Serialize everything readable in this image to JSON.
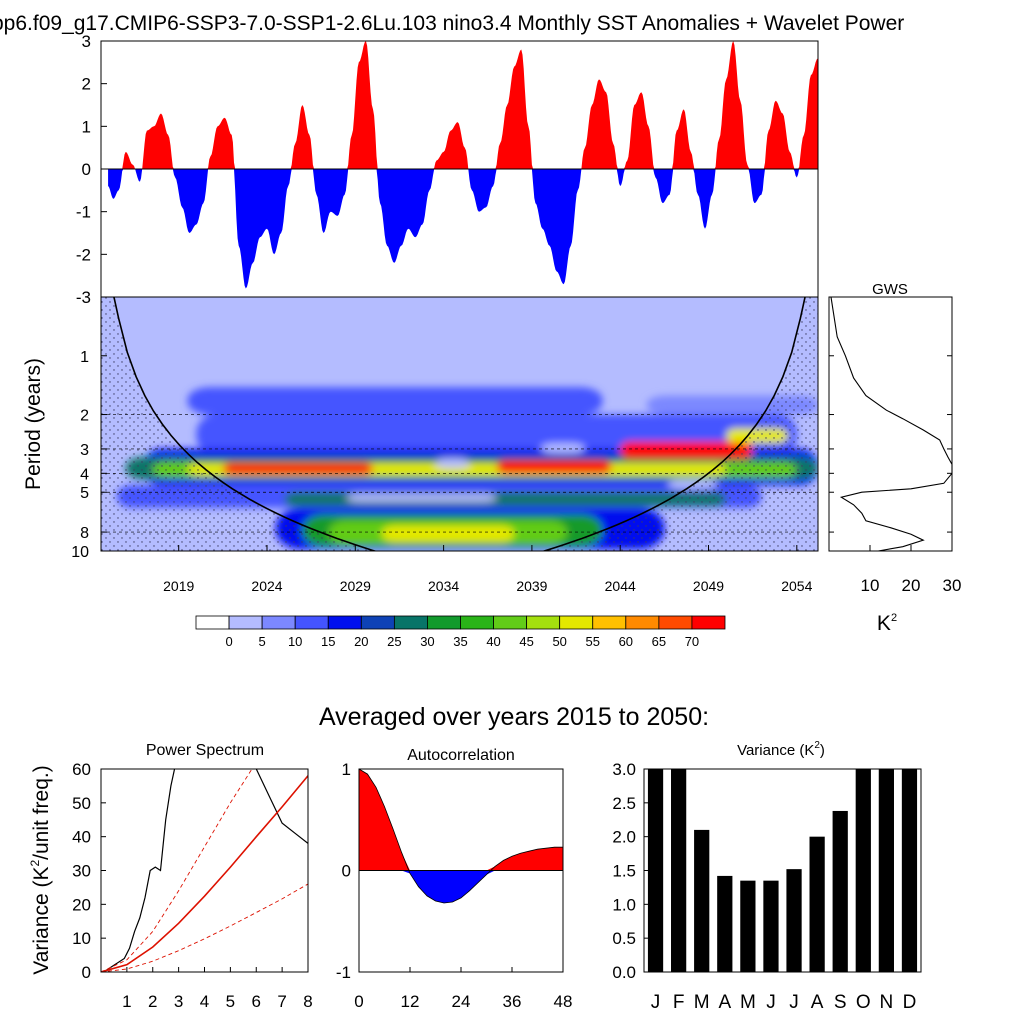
{
  "title": "pp6.f09_g17.CMIP6-SSP3-7.0-SSP1-2.6Lu.103 nino3.4 Monthly SST Anomalies + Wavelet Power",
  "colors": {
    "positive": "#ff0000",
    "negative": "#0000ff",
    "line": "#000000",
    "red_line": "#dd1100"
  },
  "chart_data": [
    {
      "id": "anomaly",
      "type": "area",
      "xlim": [
        2014.6,
        2055.2
      ],
      "ylim": [
        -3,
        3
      ],
      "yticks": [
        "3",
        "2",
        "1",
        "0",
        "-1",
        "-2",
        "-3"
      ],
      "note_values": "monthly SST anomaly (K), red above zero, blue below",
      "x": [
        2015.0,
        2015.3,
        2015.6,
        2016.0,
        2016.4,
        2016.8,
        2017.2,
        2017.6,
        2018.0,
        2018.4,
        2018.8,
        2019.2,
        2019.6,
        2020.0,
        2020.4,
        2020.8,
        2021.2,
        2021.6,
        2022.0,
        2022.4,
        2022.8,
        2023.2,
        2023.6,
        2024.0,
        2024.4,
        2024.8,
        2025.2,
        2025.6,
        2026.0,
        2026.4,
        2026.8,
        2027.2,
        2027.6,
        2028.0,
        2028.4,
        2028.8,
        2029.2,
        2029.6,
        2030.0,
        2030.4,
        2030.8,
        2031.2,
        2031.6,
        2032.0,
        2032.4,
        2032.8,
        2033.2,
        2033.6,
        2034.0,
        2034.4,
        2034.8,
        2035.2,
        2035.6,
        2036.0,
        2036.4,
        2036.8,
        2037.2,
        2037.6,
        2038.0,
        2038.4,
        2038.8,
        2039.2,
        2039.6,
        2040.0,
        2040.4,
        2040.8,
        2041.2,
        2041.6,
        2042.0,
        2042.4,
        2042.8,
        2043.2,
        2043.6,
        2044.0,
        2044.4,
        2044.8,
        2045.2,
        2045.6,
        2046.0,
        2046.4,
        2046.8,
        2047.2,
        2047.6,
        2048.0,
        2048.4,
        2048.8,
        2049.2,
        2049.6,
        2050.0,
        2050.4,
        2050.8,
        2051.2,
        2051.6,
        2052.0,
        2052.4,
        2052.8,
        2053.2,
        2053.6,
        2054.0,
        2054.4,
        2054.8,
        2055.2
      ],
      "values": [
        -0.4,
        -0.7,
        -0.5,
        0.4,
        0.1,
        -0.3,
        0.9,
        1.0,
        1.3,
        0.8,
        -0.2,
        -0.9,
        -1.5,
        -1.3,
        -0.8,
        0.3,
        1.0,
        1.2,
        0.8,
        -1.8,
        -2.8,
        -2.2,
        -1.6,
        -1.4,
        -2.0,
        -1.5,
        -0.4,
        0.6,
        1.5,
        0.8,
        -0.6,
        -1.5,
        -1.0,
        -1.1,
        -0.6,
        0.8,
        2.5,
        3.0,
        1.4,
        -0.8,
        -1.8,
        -2.2,
        -1.8,
        -1.4,
        -1.6,
        -1.3,
        -0.5,
        0.2,
        0.4,
        0.9,
        1.1,
        0.5,
        -0.5,
        -1.0,
        -0.9,
        -0.4,
        0.6,
        1.5,
        2.4,
        2.8,
        1.0,
        -0.8,
        -1.4,
        -1.8,
        -2.4,
        -2.7,
        -1.8,
        -0.5,
        0.5,
        1.5,
        2.1,
        1.8,
        0.6,
        -0.4,
        0.2,
        1.5,
        1.8,
        1.0,
        -0.2,
        -0.8,
        -0.6,
        0.9,
        1.4,
        0.4,
        -0.6,
        -1.4,
        -0.6,
        0.7,
        2.1,
        3.0,
        1.6,
        0.1,
        -0.8,
        -0.6,
        0.9,
        1.6,
        1.3,
        0.4,
        -0.2,
        0.8,
        2.2,
        2.6
      ]
    },
    {
      "id": "wavelet",
      "type": "heatmap",
      "xlabel": "",
      "ylabel": "Period (years)",
      "xticks": [
        "2019",
        "2024",
        "2029",
        "2034",
        "2039",
        "2044",
        "2049",
        "2054"
      ],
      "yticks": [
        "1",
        "2",
        "3",
        "4",
        "5",
        "8",
        "10"
      ],
      "xlim": [
        2014.6,
        2055.2
      ],
      "ylim_period": [
        0.5,
        10
      ],
      "cone_of_influence": true,
      "dashed_periods": [
        2,
        3,
        4,
        5,
        8
      ]
    },
    {
      "id": "colorbar",
      "type": "table",
      "labels": [
        "0",
        "5",
        "10",
        "15",
        "20",
        "25",
        "30",
        "35",
        "40",
        "45",
        "50",
        "55",
        "60",
        "65",
        "70"
      ],
      "colors": [
        "#ffffff",
        "#b4bcff",
        "#7c88ff",
        "#4454ff",
        "#0010ee",
        "#0e42b6",
        "#087468",
        "#129a2c",
        "#2ab418",
        "#62cc18",
        "#a4e00e",
        "#e4e800",
        "#ffc000",
        "#ff8a00",
        "#ff4a00",
        "#ff0000"
      ]
    },
    {
      "id": "gws",
      "type": "line",
      "title": "GWS",
      "xlabel": "K",
      "xlabel_sup": "2",
      "xticks": [
        "10",
        "20",
        "30"
      ],
      "xlim": [
        0,
        30
      ],
      "period": [
        0.5,
        0.8,
        1.0,
        1.3,
        1.6,
        1.9,
        2.1,
        2.4,
        2.7,
        3.0,
        3.3,
        3.6,
        4.0,
        4.5,
        4.8,
        5.0,
        5.3,
        5.8,
        6.4,
        7.0,
        7.6,
        8.2,
        8.8,
        9.5,
        10.0
      ],
      "power": [
        0.5,
        2,
        4,
        6,
        9,
        14,
        18,
        23,
        27,
        28,
        29,
        30,
        30,
        28,
        20,
        8,
        3,
        6,
        8,
        9,
        15,
        20,
        23,
        18,
        12
      ]
    },
    {
      "id": "summary_title",
      "type": "table",
      "text": "Averaged over years 2015 to 2050:"
    },
    {
      "id": "power_spectrum",
      "type": "line",
      "title": "Power Spectrum",
      "ylabel": "Variance (K",
      "ylabel_sup": "2",
      "ylabel_end": "/unit freq.)",
      "xticks": [
        "1",
        "2",
        "3",
        "4",
        "5",
        "6",
        "7",
        "8"
      ],
      "yticks": [
        "60",
        "50",
        "40",
        "30",
        "20",
        "10",
        "0"
      ],
      "xlim": [
        0,
        8
      ],
      "ylim": [
        0,
        60
      ],
      "series": [
        {
          "x": [
            0.1,
            0.5,
            0.9,
            1.1,
            1.3,
            1.5,
            1.7,
            1.9,
            2.1,
            2.3,
            2.5,
            2.7,
            2.9,
            3.0
          ],
          "y": [
            0,
            2,
            4,
            7,
            12,
            16,
            22,
            30,
            31,
            30,
            45,
            55,
            62,
            66
          ]
        },
        {
          "x": [
            6.0,
            6.5,
            7.0,
            7.5,
            8.0
          ],
          "y": [
            60,
            52,
            44,
            41,
            38
          ]
        },
        {
          "x": [
            0,
            1,
            2,
            3,
            4,
            5,
            6,
            7,
            8
          ],
          "y": [
            0,
            2.2,
            7.4,
            14.4,
            22.4,
            31,
            40,
            48.8,
            58
          ]
        },
        {
          "x": [
            0,
            1,
            2,
            3,
            4,
            5,
            6,
            6.3
          ],
          "y": [
            0,
            3.6,
            12,
            24,
            37,
            50,
            62,
            66
          ]
        },
        {
          "x": [
            0,
            1,
            2,
            3,
            4,
            5,
            6,
            7,
            8
          ],
          "y": [
            0,
            0.9,
            3.2,
            6.3,
            9.8,
            13.6,
            17.6,
            21.6,
            26
          ]
        }
      ]
    },
    {
      "id": "autocorrelation",
      "type": "area",
      "title": "Autocorrelation",
      "xticks": [
        "0",
        "12",
        "24",
        "36",
        "48"
      ],
      "yticks": [
        "1",
        "0",
        "-1"
      ],
      "xlim": [
        0,
        48
      ],
      "ylim": [
        -1,
        1
      ],
      "x": [
        0,
        2,
        4,
        6,
        8,
        10,
        12,
        14,
        16,
        18,
        20,
        22,
        24,
        26,
        28,
        30,
        32,
        34,
        36,
        38,
        40,
        42,
        44,
        46,
        48
      ],
      "values": [
        1.0,
        0.95,
        0.82,
        0.63,
        0.41,
        0.18,
        -0.03,
        -0.16,
        -0.25,
        -0.3,
        -0.32,
        -0.31,
        -0.27,
        -0.2,
        -0.12,
        -0.04,
        0.04,
        0.1,
        0.14,
        0.17,
        0.19,
        0.21,
        0.22,
        0.23,
        0.23
      ]
    },
    {
      "id": "variance",
      "type": "bar",
      "title": "Variance (K",
      "title_sup": "2",
      "title_end": ")",
      "categories": [
        "J",
        "F",
        "M",
        "A",
        "M",
        "J",
        "J",
        "A",
        "S",
        "O",
        "N",
        "D"
      ],
      "values": [
        3.0,
        3.0,
        2.1,
        1.42,
        1.35,
        1.35,
        1.52,
        2.0,
        2.38,
        3.0,
        3.0,
        3.0
      ],
      "yticks": [
        "3.0",
        "2.5",
        "2.0",
        "1.5",
        "1.0",
        "0.5",
        "0.0"
      ],
      "ylim": [
        0,
        3
      ]
    }
  ]
}
